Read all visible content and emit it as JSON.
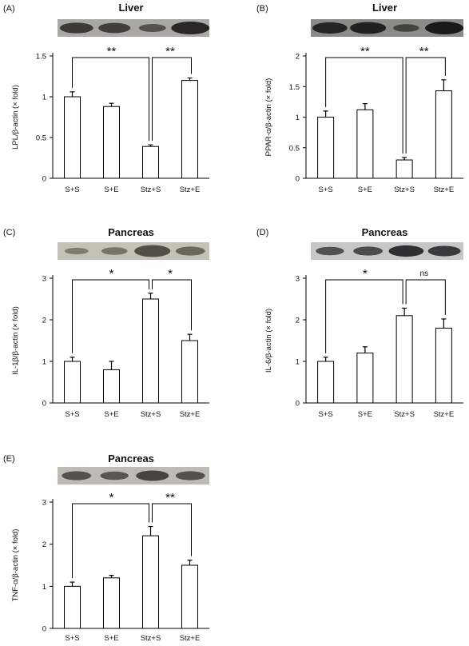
{
  "palette": {
    "bar_fill": "#ffffff",
    "stroke": "#000000"
  },
  "chart_data": [
    {
      "type": "bar",
      "panel_label": "(A)",
      "title": "Liver",
      "ylabel": "LPL/β-actin (× fold)",
      "categories": [
        "S+S",
        "S+E",
        "Stz+S",
        "Stz+E"
      ],
      "values": [
        1.0,
        0.88,
        0.39,
        1.2
      ],
      "errors": [
        0.06,
        0.04,
        0.02,
        0.03
      ],
      "ylim": [
        0,
        1.5
      ],
      "yticks": [
        "0",
        "0.5",
        "1",
        "1.5"
      ],
      "yticks_values": [
        0,
        0.5,
        1,
        1.5
      ],
      "significance": [
        {
          "from": 0,
          "to": 2,
          "label": "**"
        },
        {
          "from": 2,
          "to": 3,
          "label": "**"
        }
      ],
      "blot": {
        "bands": [
          0.78,
          0.72,
          0.5,
          1.0
        ],
        "bg": "#a9a8a2",
        "band": "#2a2826"
      }
    },
    {
      "type": "bar",
      "panel_label": "(B)",
      "title": "Liver",
      "ylabel": "PPAR-α/β-actin (× fold)",
      "categories": [
        "S+S",
        "S+E",
        "Stz+S",
        "Stz+E"
      ],
      "values": [
        1.0,
        1.12,
        0.3,
        1.43
      ],
      "errors": [
        0.1,
        0.1,
        0.04,
        0.18
      ],
      "ylim": [
        0,
        2
      ],
      "yticks": [
        "0",
        "0.5",
        "1",
        "1.5",
        "2"
      ],
      "yticks_values": [
        0,
        0.5,
        1,
        1.5,
        2
      ],
      "significance": [
        {
          "from": 0,
          "to": 2,
          "label": "**"
        },
        {
          "from": 2,
          "to": 3,
          "label": "**"
        }
      ],
      "blot": {
        "bands": [
          0.85,
          0.9,
          0.45,
          1.0
        ],
        "bg": "#8a8a86",
        "band": "#1b1a1a"
      }
    },
    {
      "type": "bar",
      "panel_label": "(C)",
      "title": "Pancreas",
      "ylabel": "IL-1β/β-actin (× fold)",
      "categories": [
        "S+S",
        "S+E",
        "Stz+S",
        "Stz+E"
      ],
      "values": [
        1.0,
        0.8,
        2.5,
        1.5
      ],
      "errors": [
        0.1,
        0.2,
        0.14,
        0.15
      ],
      "ylim": [
        0,
        3
      ],
      "yticks": [
        "0",
        "1",
        "2",
        "3"
      ],
      "yticks_values": [
        0,
        1,
        2,
        3
      ],
      "significance": [
        {
          "from": 0,
          "to": 2,
          "label": "*"
        },
        {
          "from": 2,
          "to": 3,
          "label": "*"
        }
      ],
      "blot": {
        "bands": [
          0.35,
          0.45,
          0.9,
          0.6
        ],
        "bg": "#c4c2b6",
        "band": "#4b4740"
      }
    },
    {
      "type": "bar",
      "panel_label": "(D)",
      "title": "Pancreas",
      "ylabel": "IL-6/β-actin (× fold)",
      "categories": [
        "S+S",
        "S+E",
        "Stz+S",
        "Stz+E"
      ],
      "values": [
        1.0,
        1.2,
        2.1,
        1.8
      ],
      "errors": [
        0.1,
        0.15,
        0.18,
        0.22
      ],
      "ylim": [
        0,
        3
      ],
      "yticks": [
        "0",
        "1",
        "2",
        "3"
      ],
      "yticks_values": [
        0,
        1,
        2,
        3
      ],
      "significance": [
        {
          "from": 0,
          "to": 2,
          "label": "*"
        },
        {
          "from": 2,
          "to": 3,
          "label": "ns"
        }
      ],
      "blot": {
        "bands": [
          0.55,
          0.6,
          0.85,
          0.75
        ],
        "bg": "#c6c8c8",
        "band": "#1d2020"
      }
    },
    {
      "type": "bar",
      "panel_label": "(E)",
      "title": "Pancreas",
      "ylabel": "TNF-α/β-actin (× fold)",
      "categories": [
        "S+S",
        "S+E",
        "Stz+S",
        "Stz+E"
      ],
      "values": [
        1.0,
        1.2,
        2.2,
        1.5
      ],
      "errors": [
        0.1,
        0.06,
        0.22,
        0.12
      ],
      "ylim": [
        0,
        3
      ],
      "yticks": [
        "0",
        "1",
        "2",
        "3"
      ],
      "yticks_values": [
        0,
        1,
        2,
        3
      ],
      "significance": [
        {
          "from": 0,
          "to": 2,
          "label": "*"
        },
        {
          "from": 2,
          "to": 3,
          "label": "**"
        }
      ],
      "blot": {
        "bands": [
          0.6,
          0.55,
          0.75,
          0.6
        ],
        "bg": "#bdbbb4",
        "band": "#2e2c2a"
      }
    }
  ]
}
